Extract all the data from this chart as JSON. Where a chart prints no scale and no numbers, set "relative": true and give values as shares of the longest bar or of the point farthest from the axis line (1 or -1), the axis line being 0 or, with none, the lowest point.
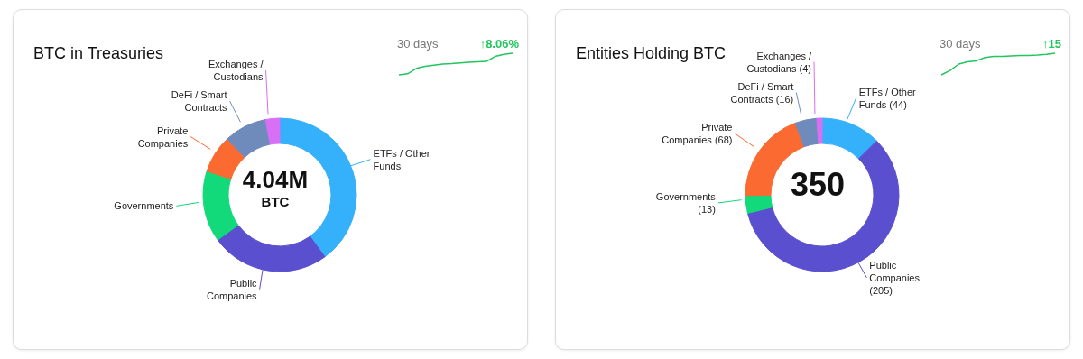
{
  "chart_data": [
    {
      "type": "donut",
      "title": "BTC in Treasuries",
      "categories": [
        "ETFs / Other Funds",
        "Public Companies",
        "Governments",
        "Private Companies",
        "DeFi / Smart Contracts",
        "Exchanges / Custodians"
      ],
      "values": [
        40,
        25,
        15,
        8,
        9,
        3
      ],
      "colors": [
        "#35b0fb",
        "#5a4fcf",
        "#12d97a",
        "#fb6a30",
        "#6f8bbb",
        "#d86ff5"
      ],
      "annotations": [
        "4.04M",
        "BTC"
      ],
      "legend": false
    },
    {
      "type": "line",
      "title": "30 days",
      "annotations": [
        "↑8.06%"
      ],
      "relative": true,
      "categories": [
        null,
        null,
        null,
        null,
        null,
        null,
        null,
        null,
        null,
        null,
        null,
        null,
        null,
        null
      ],
      "series": [
        {
          "color": "#22c55e",
          "values": [
            0,
            0.05,
            0.3,
            0.4,
            0.45,
            0.5,
            0.52,
            0.55,
            0.58,
            0.6,
            0.62,
            0.85,
            0.95,
            1
          ]
        }
      ],
      "legend": false
    },
    {
      "type": "donut",
      "title": "Entities Holding BTC",
      "categories": [
        "ETFs / Other Funds (44)",
        "Public Companies (205)",
        "Governments (13)",
        "Private Companies (68)",
        "DeFi / Smart Contracts (16)",
        "Exchanges / Custodians (4)"
      ],
      "values": [
        44,
        205,
        13,
        68,
        16,
        4
      ],
      "colors": [
        "#35b0fb",
        "#5a4fcf",
        "#12d97a",
        "#fb6a30",
        "#6f8bbb",
        "#d86ff5"
      ],
      "annotations": [
        "350"
      ],
      "legend": false
    },
    {
      "type": "line",
      "title": "30 days",
      "annotations": [
        "↑15"
      ],
      "relative": true,
      "categories": [
        null,
        null,
        null,
        null,
        null,
        null,
        null,
        null,
        null,
        null,
        null,
        null,
        null,
        null
      ],
      "series": [
        {
          "color": "#22c55e",
          "values": [
            0,
            0.2,
            0.5,
            0.6,
            0.65,
            0.8,
            0.85,
            0.85,
            0.88,
            0.9,
            0.9,
            0.92,
            0.95,
            1
          ]
        }
      ],
      "legend": false
    }
  ]
}
